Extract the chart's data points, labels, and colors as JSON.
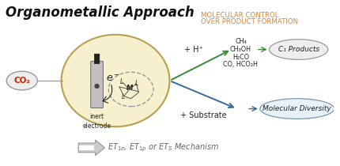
{
  "title": "Organometallic Approach",
  "subtitle_line1": "Molecular Control",
  "subtitle_line2": "Over Product Formation",
  "subtitle_color": "#D4873A",
  "co2_label": "CO₂",
  "electrode_label": "inert\nelectrode",
  "electron_label": "e⁻",
  "h_plus_label": "+ H⁺",
  "substrate_label": "+ Substrate",
  "c1_products_label": "C₁ Products",
  "molecular_diversity_label": "Molecular Diversity",
  "products_list": [
    "CH₄",
    "CH₃OH",
    "H₂CO",
    "CO, HCO₂H"
  ],
  "mechanism_text_italic": "$\\mathit{ET_{1e}}$, $\\mathit{ET_{1p}}$ or $\\mathit{ET_S}$ Mechanism",
  "bg_color": "#ffffff",
  "circle_fill": "#F7F0CE",
  "circle_edge": "#B8A050",
  "arrow_green": "#3A8A3A",
  "arrow_blue": "#3A6A9A",
  "text_dark": "#222222",
  "text_gray": "#666666",
  "lm_circle_edge": "#9999AA",
  "co2_text_color": "#CC2200",
  "co2_bubble_fill": "#eeeeee",
  "co2_bubble_edge": "#999999",
  "prod_bubble_fill": "#eeeeee",
  "prod_bubble_edge": "#999999",
  "md_bubble_fill": "#e8f0f8",
  "md_bubble_edge": "#7799AA"
}
